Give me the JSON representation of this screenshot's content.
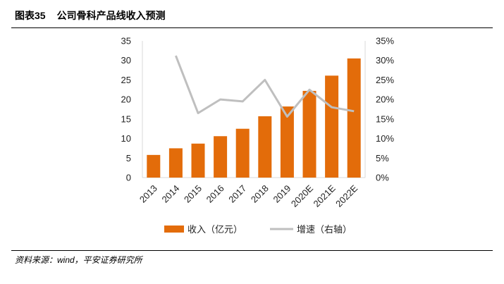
{
  "header": {
    "figure_number": "图表35",
    "title": "公司骨科产品线收入预测"
  },
  "source": "资料来源：wind，平安证券研究所",
  "colors": {
    "bar": "#e36c0a",
    "line": "#bfbfbf"
  },
  "chart_data": {
    "type": "bar",
    "title": "公司骨科产品线收入预测",
    "categories": [
      "2013",
      "2014",
      "2015",
      "2016",
      "2017",
      "2018",
      "2019",
      "2020E",
      "2021E",
      "2022E"
    ],
    "series": [
      {
        "name": "收入（亿元）",
        "type": "bar",
        "axis": "left",
        "values": [
          5.8,
          7.5,
          8.7,
          10.6,
          12.5,
          15.7,
          18.2,
          22.2,
          26.1,
          30.5
        ]
      },
      {
        "name": "增速（右轴）",
        "type": "line",
        "axis": "right",
        "values": [
          null,
          0.312,
          0.165,
          0.2,
          0.195,
          0.25,
          0.156,
          0.225,
          0.18,
          0.17
        ]
      }
    ],
    "y_left": {
      "ylim": [
        0,
        35
      ],
      "ticks": [
        "0",
        "5",
        "10",
        "15",
        "20",
        "25",
        "30",
        "35"
      ],
      "tick_values": [
        0,
        5,
        10,
        15,
        20,
        25,
        30,
        35
      ]
    },
    "y_right": {
      "ylim": [
        0,
        0.35
      ],
      "ticks": [
        "0%",
        "5%",
        "10%",
        "15%",
        "20%",
        "25%",
        "30%",
        "35%"
      ],
      "tick_values": [
        0,
        0.05,
        0.1,
        0.15,
        0.2,
        0.25,
        0.3,
        0.35
      ]
    },
    "legend": {
      "position": "bottom",
      "items": [
        "收入（亿元）",
        "增速（右轴）"
      ]
    },
    "grid": false
  }
}
